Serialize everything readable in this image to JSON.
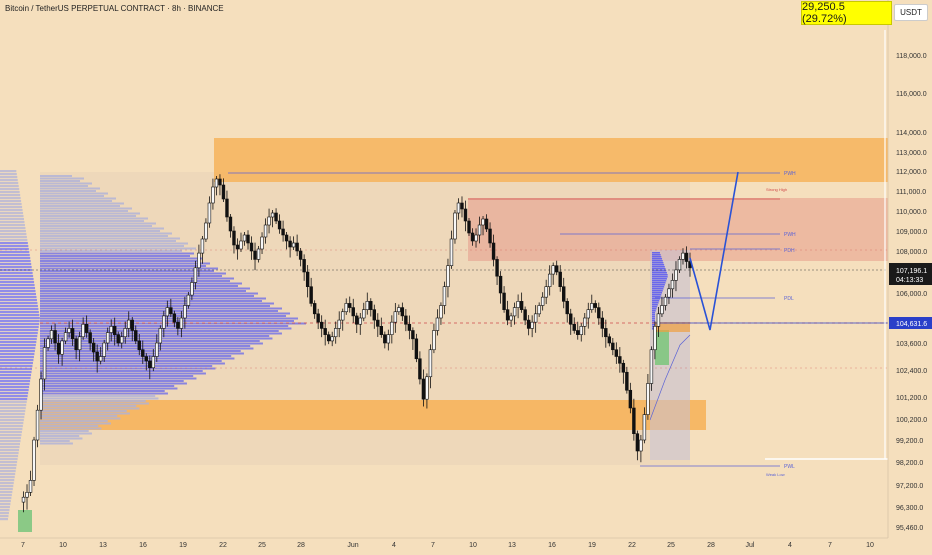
{
  "header": {
    "title": "Bitcoin / TetherUS PERPETUAL CONTRACT · 8h · BINANCE",
    "currency": "USDT",
    "change_badge": "29,250.5 (29.72%)"
  },
  "chart_data": {
    "type": "candlestick",
    "ylim": [
      95000,
      120000
    ],
    "y_ticks": [
      118000,
      116000,
      114000,
      113000,
      112000,
      111000,
      110000,
      109000,
      108000,
      106000,
      103600,
      102400,
      101200,
      100200,
      99200,
      98200,
      97200,
      96300,
      95460
    ],
    "y_tick_labels": [
      "118,000.0",
      "116,000.0",
      "114,000.0",
      "113,000.0",
      "112,000.0",
      "111,000.0",
      "110,000.0",
      "109,000.0",
      "108,000.0",
      "106,000.0",
      "103,600.0",
      "102,400.0",
      "101,200.0",
      "100,200.0",
      "99,200.0",
      "98,200.0",
      "97,200.0",
      "96,300.0",
      "95,460.0"
    ],
    "x_ticks": [
      "7",
      "10",
      "13",
      "16",
      "19",
      "22",
      "25",
      "28",
      "Jun",
      "4",
      "7",
      "10",
      "13",
      "16",
      "19",
      "22",
      "25",
      "28",
      "Jul",
      "4",
      "7",
      "10"
    ],
    "price_labels": {
      "current": "107,196.1",
      "countdown": "04:13:33",
      "level": "104,631.6",
      "current_color": "#1a1a1a",
      "level_color": "#2a3fc9"
    },
    "annotations": [
      "PWH",
      "Strong High",
      "PWH",
      "PDH",
      "PDL",
      "PWL",
      "Weak Low"
    ],
    "close_series": [
      96500,
      96700,
      96900,
      97400,
      99200,
      100600,
      102000,
      103400,
      103800,
      104200,
      103600,
      103100,
      103700,
      104100,
      104300,
      103800,
      103300,
      103900,
      104500,
      104100,
      103600,
      103200,
      102800,
      103000,
      103600,
      104100,
      104400,
      104000,
      103600,
      103900,
      104300,
      104700,
      104200,
      103700,
      103300,
      103000,
      102800,
      102500,
      103000,
      103600,
      104300,
      104900,
      105300,
      105000,
      104600,
      104300,
      104800,
      105400,
      105900,
      106500,
      107200,
      107900,
      108600,
      109400,
      110400,
      111200,
      111600,
      111300,
      110600,
      109700,
      109000,
      108300,
      108100,
      108500,
      108800,
      108400,
      108000,
      107600,
      108100,
      108700,
      109300,
      109700,
      109900,
      109500,
      109100,
      108800,
      108500,
      108200,
      108400,
      108000,
      107600,
      107000,
      106300,
      105500,
      105000,
      104600,
      104300,
      104000,
      103700,
      103900,
      104300,
      104700,
      105100,
      105500,
      105300,
      104900,
      104500,
      104800,
      105200,
      105600,
      105200,
      104700,
      104400,
      104000,
      103600,
      104000,
      104600,
      105100,
      105300,
      104900,
      104500,
      104200,
      103800,
      102900,
      102000,
      101100,
      102100,
      103300,
      104200,
      104800,
      105400,
      106300,
      107300,
      108600,
      109900,
      110400,
      110100,
      109500,
      108900,
      108500,
      108800,
      109300,
      109600,
      109100,
      108400,
      107600,
      106800,
      106000,
      105200,
      104700,
      104900,
      105300,
      105600,
      105200,
      104700,
      104300,
      104600,
      105000,
      105400,
      105800,
      106300,
      106900,
      107300,
      107000,
      106300,
      105600,
      105000,
      104500,
      104200,
      104000,
      104400,
      104800,
      105200,
      105500,
      105300,
      104800,
      104300,
      103900,
      103600,
      103300,
      103000,
      102700,
      102300,
      101500,
      100700,
      99500,
      98700,
      99200,
      100400,
      101800,
      103300,
      104400,
      105000,
      105400,
      105800,
      106200,
      106600,
      107100,
      107600,
      107900,
      107500,
      107196
    ]
  }
}
